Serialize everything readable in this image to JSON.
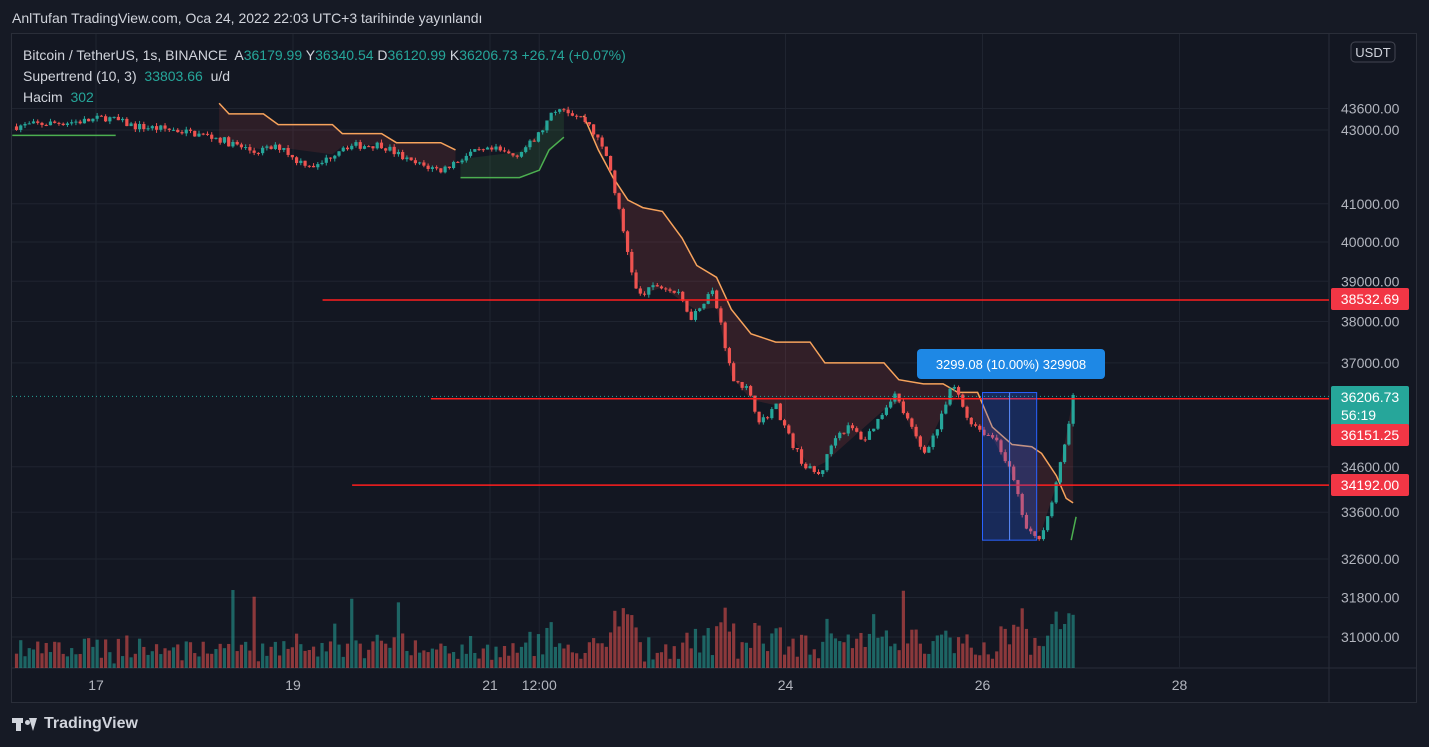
{
  "header": {
    "title": "AnlTufan TradingView.com, Oca 24, 2022 22:03 UTC+3 tarihinde yayınlandı"
  },
  "legend": {
    "symbol": "Bitcoin / TetherUS, 1s, BINANCE",
    "ohlc": [
      {
        "k": "A",
        "v": "36179.99"
      },
      {
        "k": "Y",
        "v": "36340.54"
      },
      {
        "k": "D",
        "v": "36120.99"
      },
      {
        "k": "K",
        "v": "36206.73"
      }
    ],
    "change": "+26.74 (+0.07%)",
    "supertrend_label": "Supertrend (10, 3)",
    "supertrend_value": "33803.66",
    "supertrend_suffix": "u/d",
    "volume_label": "Hacim",
    "volume_value": "302"
  },
  "currency_badge": "USDT",
  "footer": {
    "brand": "TradingView"
  },
  "colors": {
    "up": "#26a69a",
    "down": "#ef5350",
    "supertrend_down": "#f7a35c",
    "supertrend_up": "#4caf50",
    "level_line": "#ff1e1e",
    "measure": "#2962ff"
  },
  "chart_data": {
    "type": "candlestick",
    "y_scale": "log",
    "y_ticks": [
      "43000.00",
      "41000.00",
      "40000.00",
      "39000.00",
      "38000.00",
      "37000.00",
      "34600.00",
      "33600.00",
      "32600.00",
      "31800.00",
      "31000.00"
    ],
    "y_tick_values": [
      43000,
      41000,
      40000,
      39000,
      38000,
      37000,
      34600,
      33600,
      32600,
      31800,
      31000
    ],
    "top_tick_partial": "43600.00",
    "x_ticks": [
      "17",
      "19",
      "21",
      "12:00",
      "24",
      "26",
      "28"
    ],
    "x_tick_days": [
      0,
      2,
      4,
      4.5,
      7,
      9,
      11
    ],
    "x_range_days": [
      -0.85,
      13.4
    ],
    "last_price": "36206.73",
    "countdown": "56:19",
    "horizontal_levels": [
      {
        "price": 38532.69,
        "label": "38532.69",
        "from_day": 2.3
      },
      {
        "price": 36151.25,
        "label": "36151.25",
        "from_day": 3.4
      },
      {
        "price": 34192.0,
        "label": "34192.00",
        "from_day": 2.6
      }
    ],
    "measure": {
      "label": "3299.08 (10.00%) 329908",
      "from_day": 9.0,
      "to_day": 9.55,
      "low": 32999,
      "high": 36298
    },
    "price_path": [
      {
        "d": -0.85,
        "p": 43100
      },
      {
        "d": -0.4,
        "p": 43200
      },
      {
        "d": -0.1,
        "p": 43250
      },
      {
        "d": 0.1,
        "p": 43350
      },
      {
        "d": 0.4,
        "p": 43100
      },
      {
        "d": 0.8,
        "p": 43000
      },
      {
        "d": 1.2,
        "p": 42800
      },
      {
        "d": 1.6,
        "p": 42400
      },
      {
        "d": 1.9,
        "p": 42550
      },
      {
        "d": 2.0,
        "p": 42200
      },
      {
        "d": 2.25,
        "p": 42000
      },
      {
        "d": 2.5,
        "p": 42550
      },
      {
        "d": 2.9,
        "p": 42600
      },
      {
        "d": 3.2,
        "p": 42100
      },
      {
        "d": 3.5,
        "p": 41900
      },
      {
        "d": 3.8,
        "p": 42350
      },
      {
        "d": 4.05,
        "p": 42450
      },
      {
        "d": 4.25,
        "p": 42300
      },
      {
        "d": 4.45,
        "p": 42700
      },
      {
        "d": 4.7,
        "p": 43700
      },
      {
        "d": 5.0,
        "p": 43200
      },
      {
        "d": 5.2,
        "p": 42200
      },
      {
        "d": 5.35,
        "p": 40300
      },
      {
        "d": 5.5,
        "p": 38600
      },
      {
        "d": 5.7,
        "p": 38900
      },
      {
        "d": 5.9,
        "p": 38700
      },
      {
        "d": 6.05,
        "p": 38100
      },
      {
        "d": 6.25,
        "p": 38800
      },
      {
        "d": 6.35,
        "p": 37900
      },
      {
        "d": 6.45,
        "p": 36700
      },
      {
        "d": 6.6,
        "p": 36400
      },
      {
        "d": 6.75,
        "p": 35600
      },
      {
        "d": 6.9,
        "p": 36000
      },
      {
        "d": 7.05,
        "p": 35200
      },
      {
        "d": 7.2,
        "p": 34600
      },
      {
        "d": 7.35,
        "p": 34400
      },
      {
        "d": 7.5,
        "p": 35300
      },
      {
        "d": 7.65,
        "p": 35500
      },
      {
        "d": 7.8,
        "p": 35200
      },
      {
        "d": 7.95,
        "p": 35700
      },
      {
        "d": 8.1,
        "p": 36300
      },
      {
        "d": 8.25,
        "p": 35600
      },
      {
        "d": 8.4,
        "p": 34900
      },
      {
        "d": 8.55,
        "p": 35500
      },
      {
        "d": 8.7,
        "p": 36500
      },
      {
        "d": 8.85,
        "p": 35700
      },
      {
        "d": 9.0,
        "p": 35400
      },
      {
        "d": 9.15,
        "p": 35200
      },
      {
        "d": 9.3,
        "p": 34400
      },
      {
        "d": 9.45,
        "p": 33200
      },
      {
        "d": 9.55,
        "p": 33000
      },
      {
        "d": 9.65,
        "p": 33400
      },
      {
        "d": 9.75,
        "p": 34200
      },
      {
        "d": 9.85,
        "p": 35300
      },
      {
        "d": 9.92,
        "p": 36206
      }
    ],
    "supertrend_down": [
      {
        "d": 1.25,
        "p": 43750
      },
      {
        "d": 1.35,
        "p": 43450
      },
      {
        "d": 1.7,
        "p": 43450
      },
      {
        "d": 1.85,
        "p": 43150
      },
      {
        "d": 2.4,
        "p": 43150
      },
      {
        "d": 2.5,
        "p": 42900
      },
      {
        "d": 2.9,
        "p": 42900
      },
      {
        "d": 3.05,
        "p": 42650
      },
      {
        "d": 3.5,
        "p": 42650
      },
      {
        "d": 3.65,
        "p": 42450
      }
    ],
    "supertrend_up": [
      {
        "d": 3.7,
        "p": 41700
      },
      {
        "d": 4.3,
        "p": 41700
      },
      {
        "d": 4.5,
        "p": 41900
      },
      {
        "d": 4.6,
        "p": 42450
      },
      {
        "d": 4.75,
        "p": 42800
      }
    ],
    "supertrend_down2": [
      {
        "d": 4.95,
        "p": 43400
      },
      {
        "d": 5.1,
        "p": 42450
      },
      {
        "d": 5.25,
        "p": 41700
      },
      {
        "d": 5.4,
        "p": 41100
      },
      {
        "d": 5.55,
        "p": 40900
      },
      {
        "d": 5.75,
        "p": 40800
      },
      {
        "d": 5.95,
        "p": 40100
      },
      {
        "d": 6.1,
        "p": 39400
      },
      {
        "d": 6.3,
        "p": 39100
      },
      {
        "d": 6.45,
        "p": 38300
      },
      {
        "d": 6.65,
        "p": 37700
      },
      {
        "d": 6.9,
        "p": 37500
      },
      {
        "d": 7.25,
        "p": 37500
      },
      {
        "d": 7.4,
        "p": 37000
      },
      {
        "d": 8.0,
        "p": 37000
      },
      {
        "d": 8.15,
        "p": 36600
      },
      {
        "d": 8.4,
        "p": 36500
      },
      {
        "d": 8.6,
        "p": 36500
      },
      {
        "d": 8.75,
        "p": 36300
      },
      {
        "d": 8.95,
        "p": 36300
      },
      {
        "d": 9.1,
        "p": 35500
      },
      {
        "d": 9.3,
        "p": 35100
      },
      {
        "d": 9.5,
        "p": 35050
      },
      {
        "d": 9.6,
        "p": 34900
      },
      {
        "d": 9.75,
        "p": 34400
      },
      {
        "d": 9.85,
        "p": 33900
      },
      {
        "d": 9.92,
        "p": 33803
      }
    ]
  }
}
